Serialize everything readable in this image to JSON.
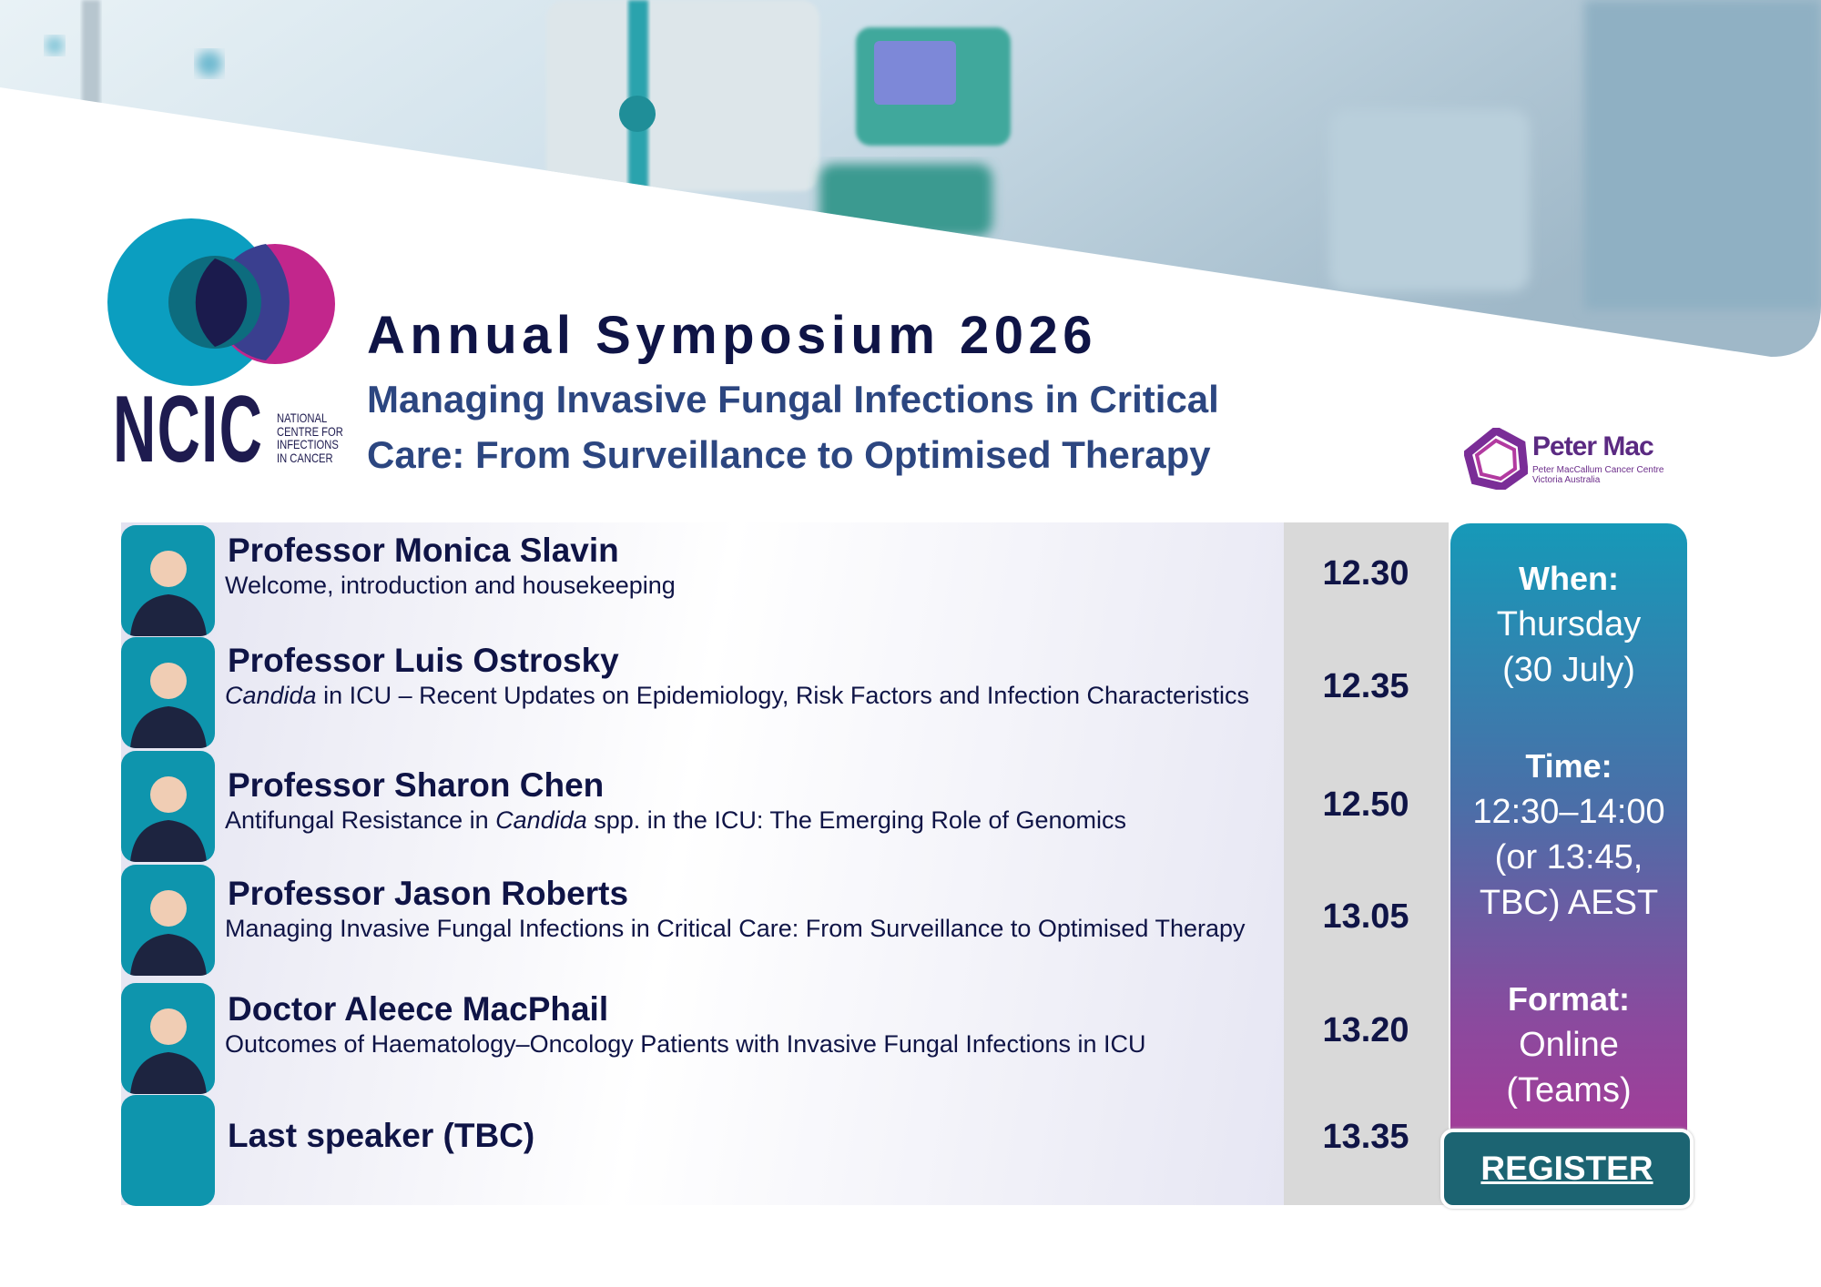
{
  "header": {
    "logo_text": "NCIC",
    "logo_subtext": [
      "NATIONAL",
      "CENTRE FOR",
      "INFECTIONS",
      "IN CANCER"
    ],
    "title": "Annual Symposium 2026",
    "subtitle_lines": [
      "Managing Invasive Fungal Infections in Critical",
      "Care: From Surveillance to Optimised Therapy"
    ],
    "partner_logo": {
      "name": "Peter Mac",
      "subtext": [
        "Peter MacCallum Cancer Centre",
        "Victoria Australia"
      ]
    }
  },
  "schedule": [
    {
      "name": "Professor Monica Slavin",
      "description": [
        {
          "text": "Welcome, introduction and housekeeping"
        }
      ],
      "time": "12.30"
    },
    {
      "name": "Professor Luis Ostrosky",
      "description": [
        {
          "text": "Candida",
          "italic": true
        },
        {
          "text": " in ICU – Recent Updates on Epidemiology, Risk Factors and Infection Characteristics"
        }
      ],
      "time": "12.35"
    },
    {
      "name": "Professor Sharon Chen",
      "description": [
        {
          "text": "Antifungal Resistance in "
        },
        {
          "text": "Candida",
          "italic": true
        },
        {
          "text": " spp. in the ICU: The Emerging Role of Genomics"
        }
      ],
      "time": "12.50"
    },
    {
      "name": "Professor Jason Roberts",
      "description": [
        {
          "text": "Managing Invasive Fungal Infections in Critical Care: From Surveillance to Optimised Therapy"
        }
      ],
      "time": "13.05"
    },
    {
      "name": "Doctor Aleece MacPhail",
      "description": [
        {
          "text": "Outcomes of Haematology–Oncology Patients with Invasive Fungal Infections in ICU"
        }
      ],
      "time": "13.20"
    },
    {
      "name": "Last speaker (TBC)",
      "time": "13.35"
    }
  ],
  "details": [
    {
      "label": "When:",
      "lines": [
        "Thursday",
        "(30 July)"
      ]
    },
    {
      "label": "Time:",
      "lines": [
        "12:30–14:00",
        "(or 13:45,",
        "TBC) AEST"
      ]
    },
    {
      "label": "Format:",
      "lines": [
        "Online",
        "(Teams)"
      ]
    }
  ],
  "register_button": "REGISTER"
}
